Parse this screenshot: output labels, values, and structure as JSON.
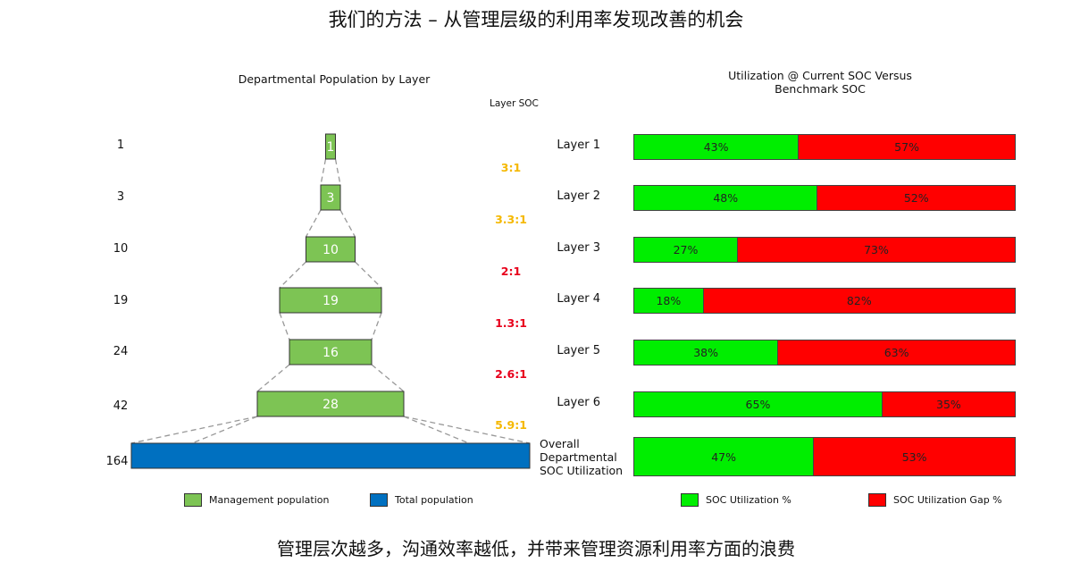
{
  "page": {
    "title": "我们的方法 – 从管理层级的利用率发现改善的机会",
    "footer": "管理层次越多，沟通效率越低，并带来管理资源利用率方面的浪费"
  },
  "chart_data": [
    {
      "type": "bar",
      "title": "Departmental  Population  by Layer",
      "column_header": "Layer SOC",
      "categories": [
        "Layer 1",
        "Layer 2",
        "Layer 3",
        "Layer 4",
        "Layer 5",
        "Layer 6",
        "Overall"
      ],
      "series": [
        {
          "name": "Management population",
          "values": [
            1,
            3,
            10,
            19,
            16,
            28,
            0
          ]
        },
        {
          "name": "Total population",
          "values": [
            1,
            3,
            10,
            19,
            24,
            42,
            164
          ]
        }
      ],
      "total_labels": [
        "1",
        "3",
        "10",
        "19",
        "24",
        "42",
        "164"
      ],
      "management_labels": [
        "1",
        "3",
        "10",
        "19",
        "16",
        "28"
      ],
      "ratios": [
        {
          "label": "3:1",
          "color": "#f5b800"
        },
        {
          "label": "3.3:1",
          "color": "#f5b800"
        },
        {
          "label": "2:1",
          "color": "#e8001c"
        },
        {
          "label": "1.3:1",
          "color": "#e8001c"
        },
        {
          "label": "2.6:1",
          "color": "#e8001c"
        },
        {
          "label": "5.9:1",
          "color": "#f5b800"
        }
      ],
      "colors": {
        "management": "#7dc454",
        "total": "#0070c0"
      },
      "legend": [
        {
          "label": "Management population",
          "color": "#7dc454"
        },
        {
          "label": "Total population",
          "color": "#0070c0"
        }
      ]
    },
    {
      "type": "bar",
      "stacked": true,
      "orientation": "horizontal",
      "title_line1": "Utilization  @ Current SOC Versus",
      "title_line2": "Benchmark  SOC",
      "rows": [
        {
          "label": "Layer 1",
          "utilization": 43,
          "gap": 57,
          "util_label": "43%",
          "gap_label": "57%"
        },
        {
          "label": "Layer 2",
          "utilization": 48,
          "gap": 52,
          "util_label": "48%",
          "gap_label": "52%"
        },
        {
          "label": "Layer 3",
          "utilization": 27,
          "gap": 73,
          "util_label": "27%",
          "gap_label": "73%"
        },
        {
          "label": "Layer 4",
          "utilization": 18,
          "gap": 82,
          "util_label": "18%",
          "gap_label": "82%"
        },
        {
          "label": "Layer 5",
          "utilization": 38,
          "gap": 63,
          "util_label": "38%",
          "gap_label": "63%"
        },
        {
          "label": "Layer 6",
          "utilization": 65,
          "gap": 35,
          "util_label": "65%",
          "gap_label": "35%"
        },
        {
          "label": "Overall Departmental SOC Utilization",
          "utilization": 47,
          "gap": 53,
          "util_label": "47%",
          "gap_label": "53%"
        }
      ],
      "overall_label_lines": [
        "Overall",
        "Departmental",
        "SOC Utilization"
      ],
      "colors": {
        "utilization": "#00ee00",
        "gap": "#ff0000"
      },
      "legend": [
        {
          "label": "SOC Utilization %",
          "color": "#00ee00"
        },
        {
          "label": "SOC Utilization Gap %",
          "color": "#ff0000"
        }
      ]
    }
  ]
}
